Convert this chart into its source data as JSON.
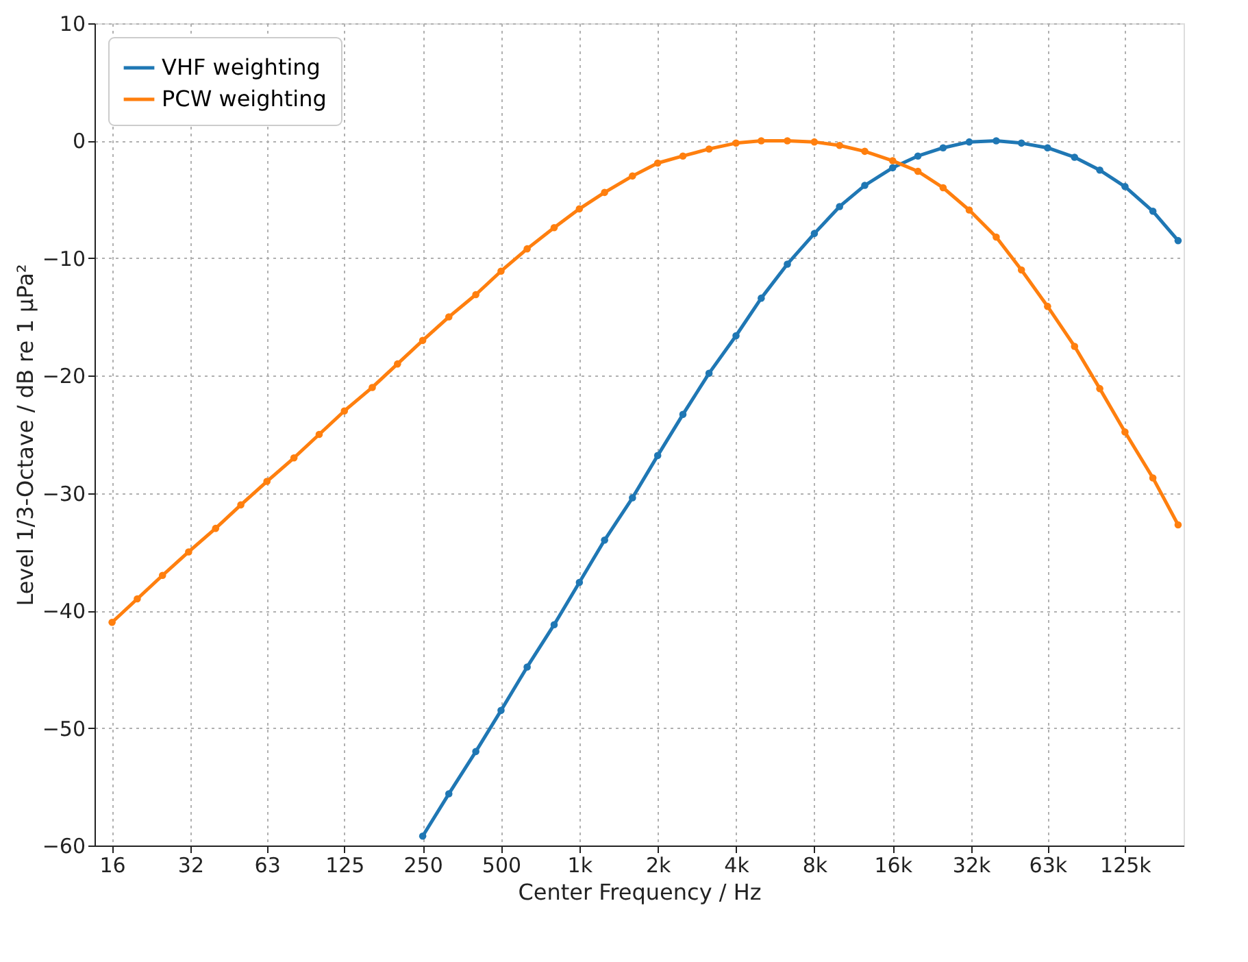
{
  "chart_data": {
    "type": "line",
    "xlabel": "Center Frequency / Hz",
    "ylabel": "Level 1/3-Octave / dB re 1 µPa²",
    "x": [
      16,
      20,
      25,
      31.5,
      40,
      50,
      63,
      80,
      100,
      125,
      160,
      200,
      250,
      315,
      400,
      500,
      630,
      800,
      1000,
      1250,
      1600,
      2000,
      2500,
      3150,
      4000,
      5000,
      6300,
      8000,
      10000,
      12500,
      16000,
      20000,
      25000,
      31500,
      40000,
      50000,
      63000,
      80000,
      100000,
      125000,
      160000,
      200000
    ],
    "series": [
      {
        "name": "VHF weighting",
        "color": "#1f77b4",
        "values": [
          null,
          null,
          null,
          null,
          null,
          null,
          null,
          null,
          null,
          null,
          null,
          null,
          -59.2,
          -55.6,
          -52.0,
          -48.5,
          -44.8,
          -41.2,
          -37.6,
          -34.0,
          -30.4,
          -26.8,
          -23.3,
          -19.8,
          -16.6,
          -13.4,
          -10.5,
          -7.9,
          -5.6,
          -3.8,
          -2.3,
          -1.3,
          -0.6,
          -0.1,
          0,
          -0.2,
          -0.6,
          -1.4,
          -2.5,
          -3.9,
          -6.0,
          -8.5
        ]
      },
      {
        "name": "PCW weighting",
        "color": "#ff7f0e",
        "values": [
          -41,
          -39,
          -37,
          -35,
          -33,
          -31,
          -29,
          -27,
          -25,
          -23,
          -21,
          -19,
          -17,
          -15,
          -13.1,
          -11.1,
          -9.2,
          -7.4,
          -5.8,
          -4.4,
          -3.0,
          -1.9,
          -1.3,
          -0.7,
          -0.2,
          0,
          0,
          -0.1,
          -0.4,
          -0.9,
          -1.7,
          -2.6,
          -4.0,
          -5.9,
          -8.2,
          -11.0,
          -14.1,
          -17.5,
          -21.1,
          -24.8,
          -28.7,
          -32.7
        ]
      }
    ],
    "log": "x",
    "xlim": [
      13.7,
      210000
    ],
    "xticks": [
      16,
      32,
      63,
      125,
      250,
      500,
      {
        "value": 1000,
        "label": "1k"
      },
      {
        "value": 2000,
        "label": "2k"
      },
      {
        "value": 4000,
        "label": "4k"
      },
      {
        "value": 8000,
        "label": "8k"
      },
      {
        "value": 16000,
        "label": "16k"
      },
      {
        "value": 32000,
        "label": "32k"
      },
      {
        "value": 63000,
        "label": "63k"
      },
      {
        "value": 125000,
        "label": "125k"
      }
    ],
    "ylim": [
      -60,
      10
    ],
    "yticks": [
      -60,
      -50,
      -40,
      -30,
      -20,
      -10,
      0,
      10
    ],
    "grid": true,
    "legend": "top left",
    "marker": "circle",
    "line_style": "solid"
  }
}
